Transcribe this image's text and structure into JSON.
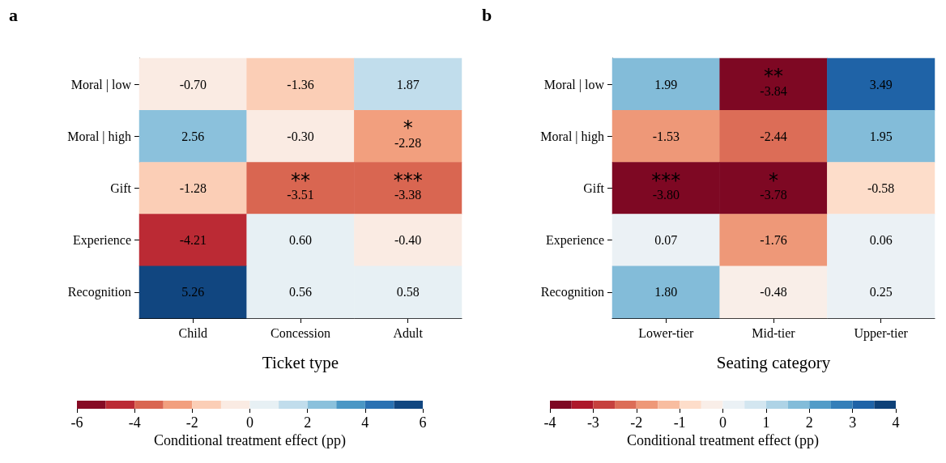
{
  "chart_data": [
    {
      "type": "heatmap",
      "title": "a",
      "xlabel": "Ticket type",
      "clabel": "Conditional treatment effect (pp)",
      "categories": [
        "Child",
        "Concession",
        "Adult"
      ],
      "y_categories": [
        "Moral | low",
        "Moral | high",
        "Gift",
        "Experience",
        "Recognition"
      ],
      "cells": [
        [
          -0.7,
          -1.36,
          1.87
        ],
        [
          2.56,
          -0.3,
          -2.28
        ],
        [
          -1.28,
          -3.51,
          -3.38
        ],
        [
          -4.21,
          0.6,
          -0.4
        ],
        [
          5.26,
          0.56,
          0.58
        ]
      ],
      "cell_labels": [
        [
          "-0.70",
          "-1.36",
          "1.87"
        ],
        [
          "2.56",
          "-0.30",
          "*\n-2.28"
        ],
        [
          "-1.28",
          "**\n-3.51",
          "***\n-3.38"
        ],
        [
          "-4.21",
          "0.60",
          "-0.40"
        ],
        [
          "5.26",
          "0.56",
          "0.58"
        ]
      ],
      "clim": [
        -6,
        6
      ],
      "cticks": [
        -6,
        -4,
        -2,
        0,
        2,
        4,
        6
      ]
    },
    {
      "type": "heatmap",
      "title": "b",
      "xlabel": "Seating category",
      "clabel": "Conditional treatment effect (pp)",
      "categories": [
        "Lower-tier",
        "Mid-tier",
        "Upper-tier"
      ],
      "y_categories": [
        "Moral | low",
        "Moral | high",
        "Gift",
        "Experience",
        "Recognition"
      ],
      "cells": [
        [
          1.99,
          -3.84,
          3.49
        ],
        [
          -1.53,
          -2.44,
          1.95
        ],
        [
          -3.8,
          -3.78,
          -0.58
        ],
        [
          0.07,
          -1.76,
          0.06
        ],
        [
          1.8,
          -0.48,
          0.25
        ]
      ],
      "cell_labels": [
        [
          "1.99",
          "**\n-3.84",
          "3.49"
        ],
        [
          "-1.53",
          "-2.44",
          "1.95"
        ],
        [
          "***\n-3.80",
          "*\n-3.78",
          "-0.58"
        ],
        [
          "0.07",
          "-1.76",
          "0.06"
        ],
        [
          "1.80",
          "-0.48",
          "0.25"
        ]
      ],
      "clim": [
        -4,
        4
      ],
      "cticks": [
        -4,
        -3,
        -2,
        -1,
        0,
        1,
        2,
        3,
        4
      ]
    }
  ]
}
